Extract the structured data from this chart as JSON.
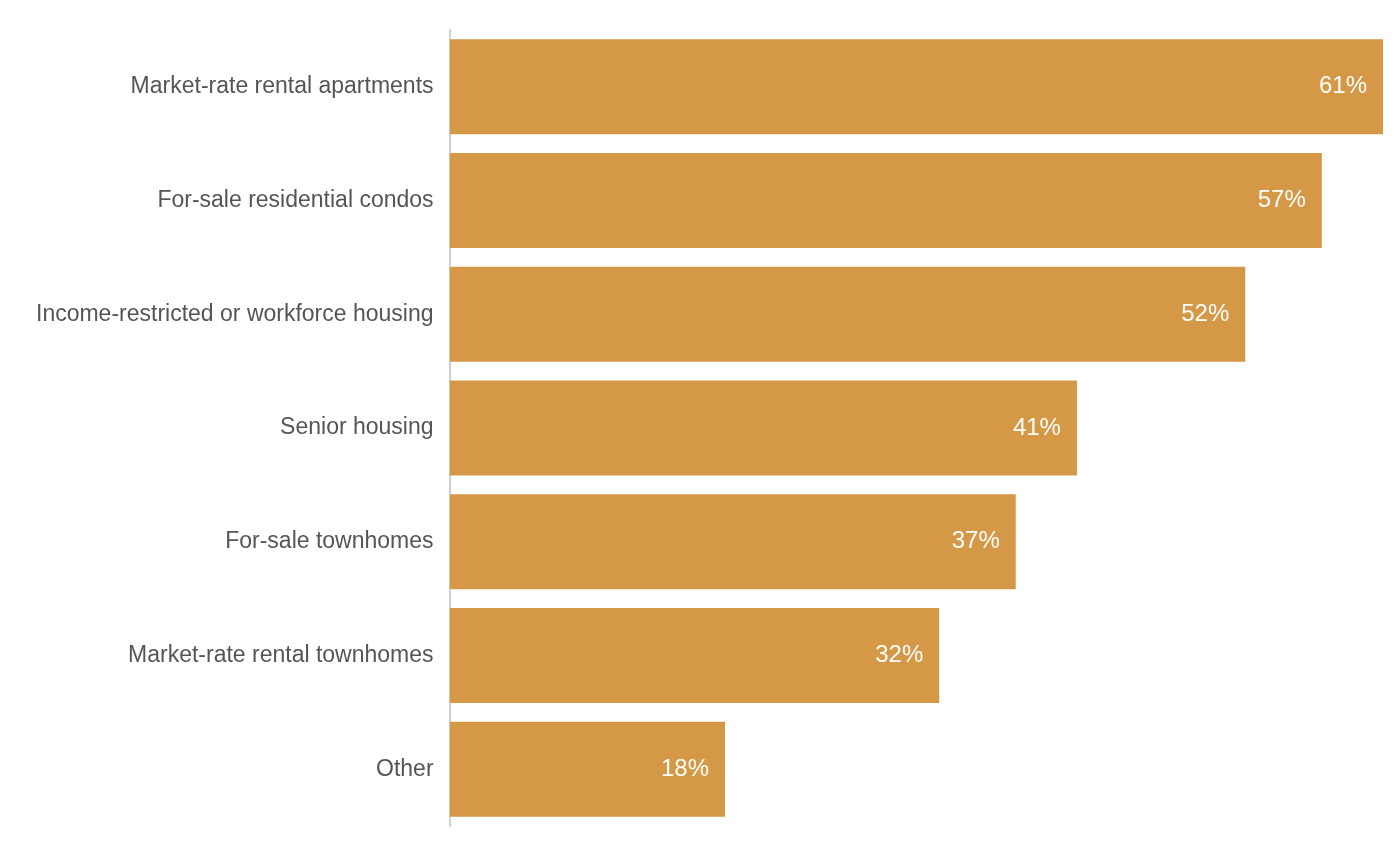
{
  "chart_data": {
    "type": "bar",
    "orientation": "horizontal",
    "categories": [
      "Market-rate rental apartments",
      "For-sale residential condos",
      "Income-restricted or workforce housing",
      "Senior housing",
      "For-sale townhomes",
      "Market-rate rental townhomes",
      "Other"
    ],
    "values": [
      61,
      57,
      52,
      41,
      37,
      32,
      18
    ],
    "value_labels": [
      "61%",
      "57%",
      "52%",
      "41%",
      "37%",
      "32%",
      "18%"
    ],
    "color": "#d59846",
    "legend": false,
    "tick_labels": "y"
  }
}
